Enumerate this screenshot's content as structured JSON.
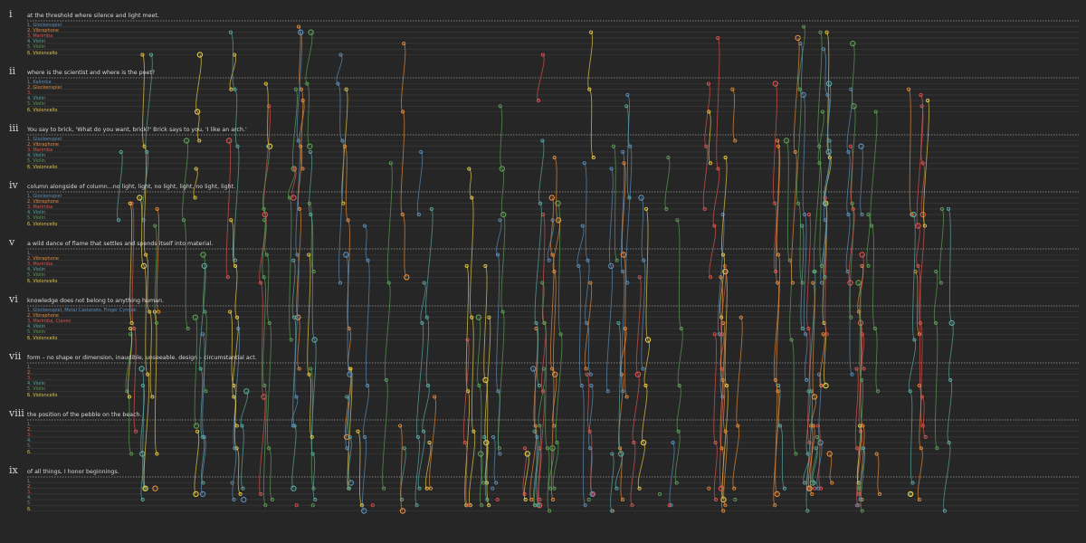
{
  "colors": {
    "background": "#262626",
    "staff_line": "#3c3c3c",
    "divider": "#9a9a9a",
    "blue": "#5b8db8",
    "orange": "#e28a3c",
    "red": "#d9534f",
    "teal": "#5aa7a0",
    "green": "#5c9d56",
    "yellow": "#e2c84a"
  },
  "movements": [
    {
      "numeral": "i",
      "title": "at the threshold where silence and light meet.",
      "parts": [
        "1. Glockenspiel",
        "2. Vibraphone",
        "3. Marimba",
        "4. Violin",
        "5. Violin",
        "6. Violoncello"
      ]
    },
    {
      "numeral": "ii",
      "title": "where is the scientist and where is the poet?",
      "parts": [
        "1. Kalimba",
        "2. Glockenspiel",
        "3.",
        "4. Violin",
        "5. Violin",
        "6. Violoncello"
      ]
    },
    {
      "numeral": "iii",
      "title": "You say to brick, 'What do you want, brick?' Brick says to you, 'I like an arch.'",
      "parts": [
        "1. Glockenspiel",
        "2. Vibraphone",
        "3. Marimba",
        "4. Violin",
        "5. Violin",
        "6. Violoncello"
      ]
    },
    {
      "numeral": "iv",
      "title": "column alongside of column...no light, light, no light, light, no light, light.",
      "parts": [
        "1. Glockenspiel",
        "2. Vibraphone",
        "3. Marimba",
        "4. Violin",
        "5. Violin",
        "6. Violoncello"
      ]
    },
    {
      "numeral": "v",
      "title": "a wild dance of flame that settles and spends itself into material.",
      "parts": [
        "1.",
        "2. Vibraphone",
        "3. Marimba",
        "4. Violin",
        "5. Violin",
        "6. Violoncello"
      ]
    },
    {
      "numeral": "vi",
      "title": "knowledge does not belong to anything human.",
      "parts": [
        "1. Glockenspiel, Metal Castanets, Finger Cymbal",
        "2. Vibraphone",
        "3. Marimba, Claves",
        "4. Violin",
        "5. Violin",
        "6. Violoncello"
      ]
    },
    {
      "numeral": "vii",
      "title": "form – no shape or dimension, inaudible, unseeable. design – circumstantial act.",
      "parts": [
        "1.",
        "2.",
        "3.",
        "4. Violin",
        "5. Violin",
        "6. Violoncello"
      ]
    },
    {
      "numeral": "viii",
      "title": "the position of the pebble on the beach.",
      "parts": [
        "1.",
        "2.",
        "3.",
        "4.",
        "5.",
        "6."
      ]
    },
    {
      "numeral": "ix",
      "title": "of all things, I honor beginnings.",
      "parts": [
        "1.",
        "2.",
        "3.",
        "4.",
        "5.",
        "6."
      ]
    }
  ]
}
